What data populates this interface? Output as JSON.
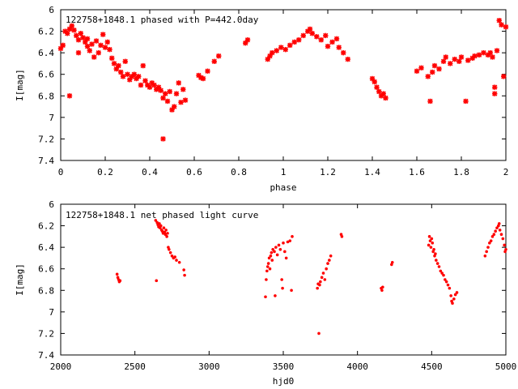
{
  "colors": {
    "series": "#ff0000",
    "axis": "#000000",
    "background": "#ffffff"
  },
  "chart_data": [
    {
      "type": "scatter",
      "title": "122758+1848.1 phased with P=442.0day",
      "xlabel": "phase",
      "ylabel": "I[mag]",
      "xlim": [
        0,
        2
      ],
      "ylim": [
        6,
        7.4
      ],
      "y_inverted": true,
      "grid": false,
      "marker": "star",
      "xticks": [
        "0",
        "0.2",
        "0.4",
        "0.6",
        "0.8",
        "1",
        "1.2",
        "1.4",
        "1.6",
        "1.8",
        "2"
      ],
      "yticks": [
        "6",
        "6.2",
        "6.4",
        "6.6",
        "6.8",
        "7",
        "7.2",
        "7.4"
      ],
      "points": [
        [
          0.0,
          6.36
        ],
        [
          0.01,
          6.33
        ],
        [
          0.02,
          6.2
        ],
        [
          0.03,
          6.22
        ],
        [
          0.04,
          6.18
        ],
        [
          0.04,
          6.8
        ],
        [
          0.05,
          6.15
        ],
        [
          0.06,
          6.19
        ],
        [
          0.07,
          6.24
        ],
        [
          0.08,
          6.28
        ],
        [
          0.08,
          6.4
        ],
        [
          0.09,
          6.22
        ],
        [
          0.1,
          6.26
        ],
        [
          0.11,
          6.3
        ],
        [
          0.12,
          6.34
        ],
        [
          0.12,
          6.27
        ],
        [
          0.13,
          6.38
        ],
        [
          0.14,
          6.32
        ],
        [
          0.15,
          6.44
        ],
        [
          0.16,
          6.29
        ],
        [
          0.17,
          6.4
        ],
        [
          0.18,
          6.33
        ],
        [
          0.19,
          6.23
        ],
        [
          0.2,
          6.35
        ],
        [
          0.21,
          6.3
        ],
        [
          0.22,
          6.37
        ],
        [
          0.23,
          6.45
        ],
        [
          0.24,
          6.5
        ],
        [
          0.25,
          6.55
        ],
        [
          0.26,
          6.52
        ],
        [
          0.27,
          6.58
        ],
        [
          0.28,
          6.62
        ],
        [
          0.29,
          6.48
        ],
        [
          0.3,
          6.6
        ],
        [
          0.31,
          6.65
        ],
        [
          0.32,
          6.62
        ],
        [
          0.33,
          6.6
        ],
        [
          0.34,
          6.64
        ],
        [
          0.35,
          6.62
        ],
        [
          0.36,
          6.7
        ],
        [
          0.37,
          6.52
        ],
        [
          0.38,
          6.66
        ],
        [
          0.39,
          6.7
        ],
        [
          0.4,
          6.72
        ],
        [
          0.41,
          6.68
        ],
        [
          0.42,
          6.7
        ],
        [
          0.43,
          6.74
        ],
        [
          0.44,
          6.72
        ],
        [
          0.45,
          6.75
        ],
        [
          0.46,
          6.82
        ],
        [
          0.46,
          7.2
        ],
        [
          0.47,
          6.78
        ],
        [
          0.48,
          6.85
        ],
        [
          0.49,
          6.76
        ],
        [
          0.5,
          6.93
        ],
        [
          0.51,
          6.9
        ],
        [
          0.52,
          6.78
        ],
        [
          0.53,
          6.68
        ],
        [
          0.54,
          6.86
        ],
        [
          0.55,
          6.74
        ],
        [
          0.56,
          6.84
        ],
        [
          0.62,
          6.61
        ],
        [
          0.63,
          6.63
        ],
        [
          0.64,
          6.64
        ],
        [
          0.66,
          6.57
        ],
        [
          0.69,
          6.48
        ],
        [
          0.71,
          6.43
        ],
        [
          0.83,
          6.31
        ],
        [
          0.84,
          6.28
        ],
        [
          0.93,
          6.46
        ],
        [
          0.94,
          6.43
        ],
        [
          0.95,
          6.4
        ],
        [
          0.97,
          6.38
        ],
        [
          0.99,
          6.35
        ],
        [
          1.01,
          6.37
        ],
        [
          1.03,
          6.33
        ],
        [
          1.05,
          6.3
        ],
        [
          1.07,
          6.28
        ],
        [
          1.09,
          6.24
        ],
        [
          1.11,
          6.2
        ],
        [
          1.12,
          6.18
        ],
        [
          1.13,
          6.22
        ],
        [
          1.15,
          6.25
        ],
        [
          1.17,
          6.28
        ],
        [
          1.19,
          6.24
        ],
        [
          1.2,
          6.34
        ],
        [
          1.22,
          6.3
        ],
        [
          1.24,
          6.27
        ],
        [
          1.25,
          6.35
        ],
        [
          1.27,
          6.4
        ],
        [
          1.29,
          6.46
        ],
        [
          1.4,
          6.64
        ],
        [
          1.41,
          6.67
        ],
        [
          1.42,
          6.72
        ],
        [
          1.43,
          6.76
        ],
        [
          1.44,
          6.8
        ],
        [
          1.45,
          6.78
        ],
        [
          1.46,
          6.82
        ],
        [
          1.6,
          6.57
        ],
        [
          1.62,
          6.54
        ],
        [
          1.65,
          6.62
        ],
        [
          1.66,
          6.85
        ],
        [
          1.67,
          6.58
        ],
        [
          1.68,
          6.52
        ],
        [
          1.7,
          6.55
        ],
        [
          1.72,
          6.48
        ],
        [
          1.73,
          6.44
        ],
        [
          1.75,
          6.5
        ],
        [
          1.77,
          6.46
        ],
        [
          1.79,
          6.48
        ],
        [
          1.8,
          6.44
        ],
        [
          1.82,
          6.85
        ],
        [
          1.83,
          6.47
        ],
        [
          1.85,
          6.45
        ],
        [
          1.86,
          6.43
        ],
        [
          1.88,
          6.42
        ],
        [
          1.9,
          6.4
        ],
        [
          1.92,
          6.42
        ],
        [
          1.93,
          6.4
        ],
        [
          1.94,
          6.44
        ],
        [
          1.95,
          6.78
        ],
        [
          1.95,
          6.72
        ],
        [
          1.96,
          6.38
        ],
        [
          1.97,
          6.1
        ],
        [
          1.98,
          6.14
        ],
        [
          1.99,
          6.62
        ],
        [
          2.0,
          6.16
        ]
      ]
    },
    {
      "type": "scatter",
      "title": "122758+1848.1 net phased light curve",
      "xlabel": "hjd0",
      "ylabel": "I[mag]",
      "xlim": [
        2000,
        5000
      ],
      "ylim": [
        6,
        7.4
      ],
      "y_inverted": true,
      "grid": false,
      "marker": "dot",
      "xticks": [
        "2000",
        "2500",
        "3000",
        "3500",
        "4000",
        "4500",
        "5000"
      ],
      "yticks": [
        "6",
        "6.2",
        "6.4",
        "6.6",
        "6.8",
        "7",
        "7.2",
        "7.4"
      ],
      "points": [
        [
          2380,
          6.65
        ],
        [
          2385,
          6.68
        ],
        [
          2390,
          6.7
        ],
        [
          2395,
          6.72
        ],
        [
          2400,
          6.71
        ],
        [
          2640,
          6.15
        ],
        [
          2645,
          6.71
        ],
        [
          2650,
          6.17
        ],
        [
          2655,
          6.19
        ],
        [
          2660,
          6.21
        ],
        [
          2665,
          6.18
        ],
        [
          2670,
          6.22
        ],
        [
          2675,
          6.2
        ],
        [
          2680,
          6.24
        ],
        [
          2685,
          6.25
        ],
        [
          2690,
          6.27
        ],
        [
          2695,
          6.22
        ],
        [
          2700,
          6.26
        ],
        [
          2705,
          6.28
        ],
        [
          2710,
          6.24
        ],
        [
          2715,
          6.3
        ],
        [
          2720,
          6.27
        ],
        [
          2725,
          6.4
        ],
        [
          2730,
          6.42
        ],
        [
          2740,
          6.45
        ],
        [
          2750,
          6.48
        ],
        [
          2760,
          6.5
        ],
        [
          2770,
          6.49
        ],
        [
          2780,
          6.52
        ],
        [
          2800,
          6.54
        ],
        [
          2830,
          6.61
        ],
        [
          2835,
          6.66
        ],
        [
          3380,
          6.86
        ],
        [
          3385,
          6.7
        ],
        [
          3390,
          6.62
        ],
        [
          3395,
          6.58
        ],
        [
          3400,
          6.55
        ],
        [
          3405,
          6.5
        ],
        [
          3410,
          6.6
        ],
        [
          3415,
          6.48
        ],
        [
          3420,
          6.45
        ],
        [
          3425,
          6.52
        ],
        [
          3430,
          6.42
        ],
        [
          3440,
          6.44
        ],
        [
          3445,
          6.85
        ],
        [
          3450,
          6.4
        ],
        [
          3460,
          6.47
        ],
        [
          3470,
          6.38
        ],
        [
          3480,
          6.42
        ],
        [
          3490,
          6.7
        ],
        [
          3495,
          6.78
        ],
        [
          3500,
          6.36
        ],
        [
          3510,
          6.44
        ],
        [
          3520,
          6.5
        ],
        [
          3530,
          6.35
        ],
        [
          3545,
          6.34
        ],
        [
          3555,
          6.8
        ],
        [
          3560,
          6.3
        ],
        [
          3730,
          6.78
        ],
        [
          3735,
          6.74
        ],
        [
          3740,
          7.2
        ],
        [
          3745,
          6.75
        ],
        [
          3750,
          6.72
        ],
        [
          3760,
          6.68
        ],
        [
          3770,
          6.64
        ],
        [
          3780,
          6.7
        ],
        [
          3790,
          6.6
        ],
        [
          3800,
          6.55
        ],
        [
          3810,
          6.52
        ],
        [
          3820,
          6.48
        ],
        [
          3890,
          6.28
        ],
        [
          3895,
          6.3
        ],
        [
          4160,
          6.78
        ],
        [
          4165,
          6.8
        ],
        [
          4170,
          6.77
        ],
        [
          4230,
          6.56
        ],
        [
          4235,
          6.54
        ],
        [
          4480,
          6.38
        ],
        [
          4485,
          6.3
        ],
        [
          4490,
          6.34
        ],
        [
          4495,
          6.4
        ],
        [
          4500,
          6.32
        ],
        [
          4505,
          6.36
        ],
        [
          4510,
          6.44
        ],
        [
          4515,
          6.42
        ],
        [
          4520,
          6.48
        ],
        [
          4525,
          6.46
        ],
        [
          4530,
          6.52
        ],
        [
          4540,
          6.55
        ],
        [
          4550,
          6.58
        ],
        [
          4560,
          6.62
        ],
        [
          4570,
          6.64
        ],
        [
          4580,
          6.66
        ],
        [
          4590,
          6.7
        ],
        [
          4600,
          6.72
        ],
        [
          4610,
          6.75
        ],
        [
          4620,
          6.78
        ],
        [
          4630,
          6.85
        ],
        [
          4635,
          6.9
        ],
        [
          4640,
          6.92
        ],
        [
          4650,
          6.88
        ],
        [
          4660,
          6.84
        ],
        [
          4670,
          6.82
        ],
        [
          4860,
          6.48
        ],
        [
          4870,
          6.44
        ],
        [
          4880,
          6.4
        ],
        [
          4890,
          6.36
        ],
        [
          4900,
          6.34
        ],
        [
          4910,
          6.3
        ],
        [
          4920,
          6.28
        ],
        [
          4930,
          6.25
        ],
        [
          4940,
          6.22
        ],
        [
          4950,
          6.2
        ],
        [
          4955,
          6.18
        ],
        [
          4960,
          6.24
        ],
        [
          4970,
          6.28
        ],
        [
          4980,
          6.32
        ],
        [
          4990,
          6.38
        ],
        [
          4995,
          6.44
        ],
        [
          5000,
          6.42
        ]
      ]
    }
  ]
}
